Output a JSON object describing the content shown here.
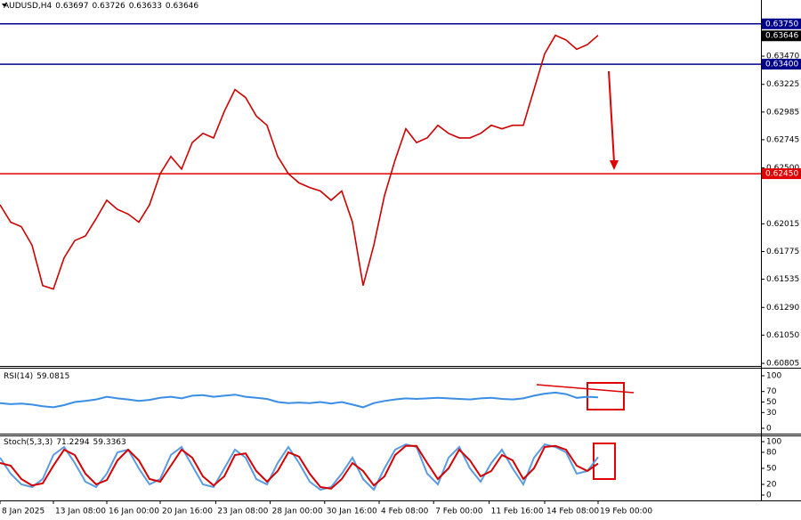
{
  "chart_data": [
    {
      "type": "line",
      "title": "AUDUSD,H4",
      "quote": [
        0.63697,
        0.63726,
        0.63633,
        0.63646
      ],
      "color": "#cc0000",
      "x": [
        0,
        1,
        2,
        3,
        4,
        5,
        6,
        7,
        8,
        9,
        10,
        11,
        12,
        13,
        14,
        15,
        16,
        17,
        18,
        19,
        20,
        21,
        22,
        23,
        24,
        25,
        26,
        27,
        28,
        29,
        30,
        31,
        32,
        33,
        34,
        35,
        36,
        37,
        38,
        39,
        40,
        41,
        42,
        43,
        44,
        45,
        46,
        47,
        48,
        49,
        50,
        51,
        52,
        53,
        54,
        55,
        56
      ],
      "values": [
        0.6218,
        0.6203,
        0.6199,
        0.6183,
        0.6148,
        0.6145,
        0.6172,
        0.6187,
        0.6191,
        0.6206,
        0.6222,
        0.6214,
        0.621,
        0.6203,
        0.6218,
        0.6245,
        0.626,
        0.6249,
        0.6272,
        0.628,
        0.6276,
        0.6299,
        0.6318,
        0.6311,
        0.6295,
        0.6287,
        0.626,
        0.6245,
        0.6237,
        0.6233,
        0.623,
        0.6222,
        0.623,
        0.6203,
        0.6148,
        0.6183,
        0.6226,
        0.6257,
        0.6284,
        0.6272,
        0.6276,
        0.6287,
        0.628,
        0.6276,
        0.6276,
        0.628,
        0.6287,
        0.6284,
        0.6287,
        0.6287,
        0.6318,
        0.6349,
        0.6365,
        0.6361,
        0.6353,
        0.6357,
        0.6365
      ],
      "xlim": [
        0,
        71.25
      ],
      "ylim": [
        0.6079,
        0.63895
      ],
      "xticks": [
        {
          "value": 0,
          "label": "8 Jan 2025"
        },
        {
          "value": 5,
          "label": "13 Jan 08:00"
        },
        {
          "value": 10,
          "label": "16 Jan 00:00"
        },
        {
          "value": 15,
          "label": "20 Jan 16:00"
        },
        {
          "value": 20.2,
          "label": "23 Jan 08:00"
        },
        {
          "value": 25.3,
          "label": "28 Jan 00:00"
        },
        {
          "value": 30.4,
          "label": "30 Jan 16:00"
        },
        {
          "value": 35.5,
          "label": "4 Feb 08:00"
        },
        {
          "value": 40.6,
          "label": "7 Feb 00:00"
        },
        {
          "value": 45.8,
          "label": "11 Feb 16:00"
        },
        {
          "value": 51,
          "label": "14 Feb 08:00"
        },
        {
          "value": 56,
          "label": "19 Feb 00:00"
        }
      ],
      "yticks": [
        {
          "value": 0.6347,
          "label": "0.63470"
        },
        {
          "value": 0.63225,
          "label": "0.63225"
        },
        {
          "value": 0.62985,
          "label": "0.62985"
        },
        {
          "value": 0.62745,
          "label": "0.62745"
        },
        {
          "value": 0.625,
          "label": "0.62500"
        },
        {
          "value": 0.62015,
          "label": "0.62015"
        },
        {
          "value": 0.61775,
          "label": "0.61775"
        },
        {
          "value": 0.61535,
          "label": "0.61535"
        },
        {
          "value": 0.6129,
          "label": "0.61290"
        },
        {
          "value": 0.6105,
          "label": "0.61050"
        },
        {
          "value": 0.60805,
          "label": "0.60805"
        }
      ],
      "levels": [
        {
          "value": 0.6375,
          "label": "0.63750",
          "color": "#00008b"
        },
        {
          "value": 0.634,
          "label": "0.63400",
          "color": "#00008b"
        },
        {
          "value": 0.6245,
          "label": "0.62450",
          "color": "#e00000"
        }
      ],
      "current": {
        "value": 0.63646,
        "label": "0.63646"
      }
    },
    {
      "type": "line",
      "title": "RSI(14)",
      "last": 59.0815,
      "color": "#3a8ee6",
      "x": [
        0,
        1,
        2,
        3,
        4,
        5,
        6,
        7,
        8,
        9,
        10,
        11,
        12,
        13,
        14,
        15,
        16,
        17,
        18,
        19,
        20,
        21,
        22,
        23,
        24,
        25,
        26,
        27,
        28,
        29,
        30,
        31,
        32,
        33,
        34,
        35,
        36,
        37,
        38,
        39,
        40,
        41,
        42,
        43,
        44,
        45,
        46,
        47,
        48,
        49,
        50,
        51,
        52,
        53,
        54,
        55,
        56
      ],
      "values": [
        48,
        46,
        47,
        45,
        42,
        40,
        44,
        50,
        52,
        55,
        60,
        57,
        55,
        52,
        54,
        58,
        60,
        57,
        62,
        63,
        60,
        62,
        64,
        60,
        58,
        56,
        50,
        48,
        49,
        48,
        50,
        47,
        50,
        45,
        40,
        48,
        52,
        55,
        57,
        56,
        57,
        58,
        57,
        56,
        55,
        57,
        58,
        56,
        55,
        57,
        62,
        66,
        68,
        65,
        58,
        60,
        59
      ],
      "xlim": [
        0,
        71.25
      ],
      "ylim": [
        0,
        100
      ],
      "yticks": [
        0,
        30,
        50,
        70,
        100
      ]
    },
    {
      "type": "line",
      "title": "Stoch(5,3,3)",
      "last": [
        71.2294,
        59.3363
      ],
      "x": [
        0,
        1,
        2,
        3,
        4,
        5,
        6,
        7,
        8,
        9,
        10,
        11,
        12,
        13,
        14,
        15,
        16,
        17,
        18,
        19,
        20,
        21,
        22,
        23,
        24,
        25,
        26,
        27,
        28,
        29,
        30,
        31,
        32,
        33,
        34,
        35,
        36,
        37,
        38,
        39,
        40,
        41,
        42,
        43,
        44,
        45,
        46,
        47,
        48,
        49,
        50,
        51,
        52,
        53,
        54,
        55,
        56
      ],
      "series": [
        {
          "color": "#5b9be0",
          "values": [
            70,
            40,
            20,
            15,
            30,
            75,
            90,
            60,
            25,
            15,
            40,
            80,
            85,
            50,
            20,
            30,
            75,
            90,
            55,
            20,
            15,
            50,
            85,
            70,
            30,
            20,
            60,
            90,
            60,
            25,
            10,
            15,
            40,
            70,
            30,
            10,
            50,
            85,
            95,
            90,
            40,
            20,
            70,
            90,
            50,
            25,
            60,
            85,
            50,
            20,
            70,
            95,
            90,
            80,
            40,
            45,
            71
          ]
        },
        {
          "color": "#d40000",
          "values": [
            60,
            55,
            30,
            18,
            22,
            55,
            85,
            75,
            40,
            20,
            28,
            65,
            85,
            65,
            30,
            25,
            55,
            85,
            70,
            35,
            18,
            35,
            75,
            78,
            45,
            25,
            45,
            80,
            72,
            40,
            15,
            12,
            30,
            60,
            45,
            18,
            35,
            75,
            92,
            92,
            60,
            30,
            50,
            85,
            65,
            35,
            45,
            75,
            65,
            30,
            50,
            90,
            92,
            85,
            55,
            45,
            59
          ]
        }
      ],
      "xlim": [
        0,
        71.25
      ],
      "ylim": [
        0,
        100
      ],
      "yticks": [
        0,
        20,
        50,
        80,
        100
      ]
    }
  ]
}
